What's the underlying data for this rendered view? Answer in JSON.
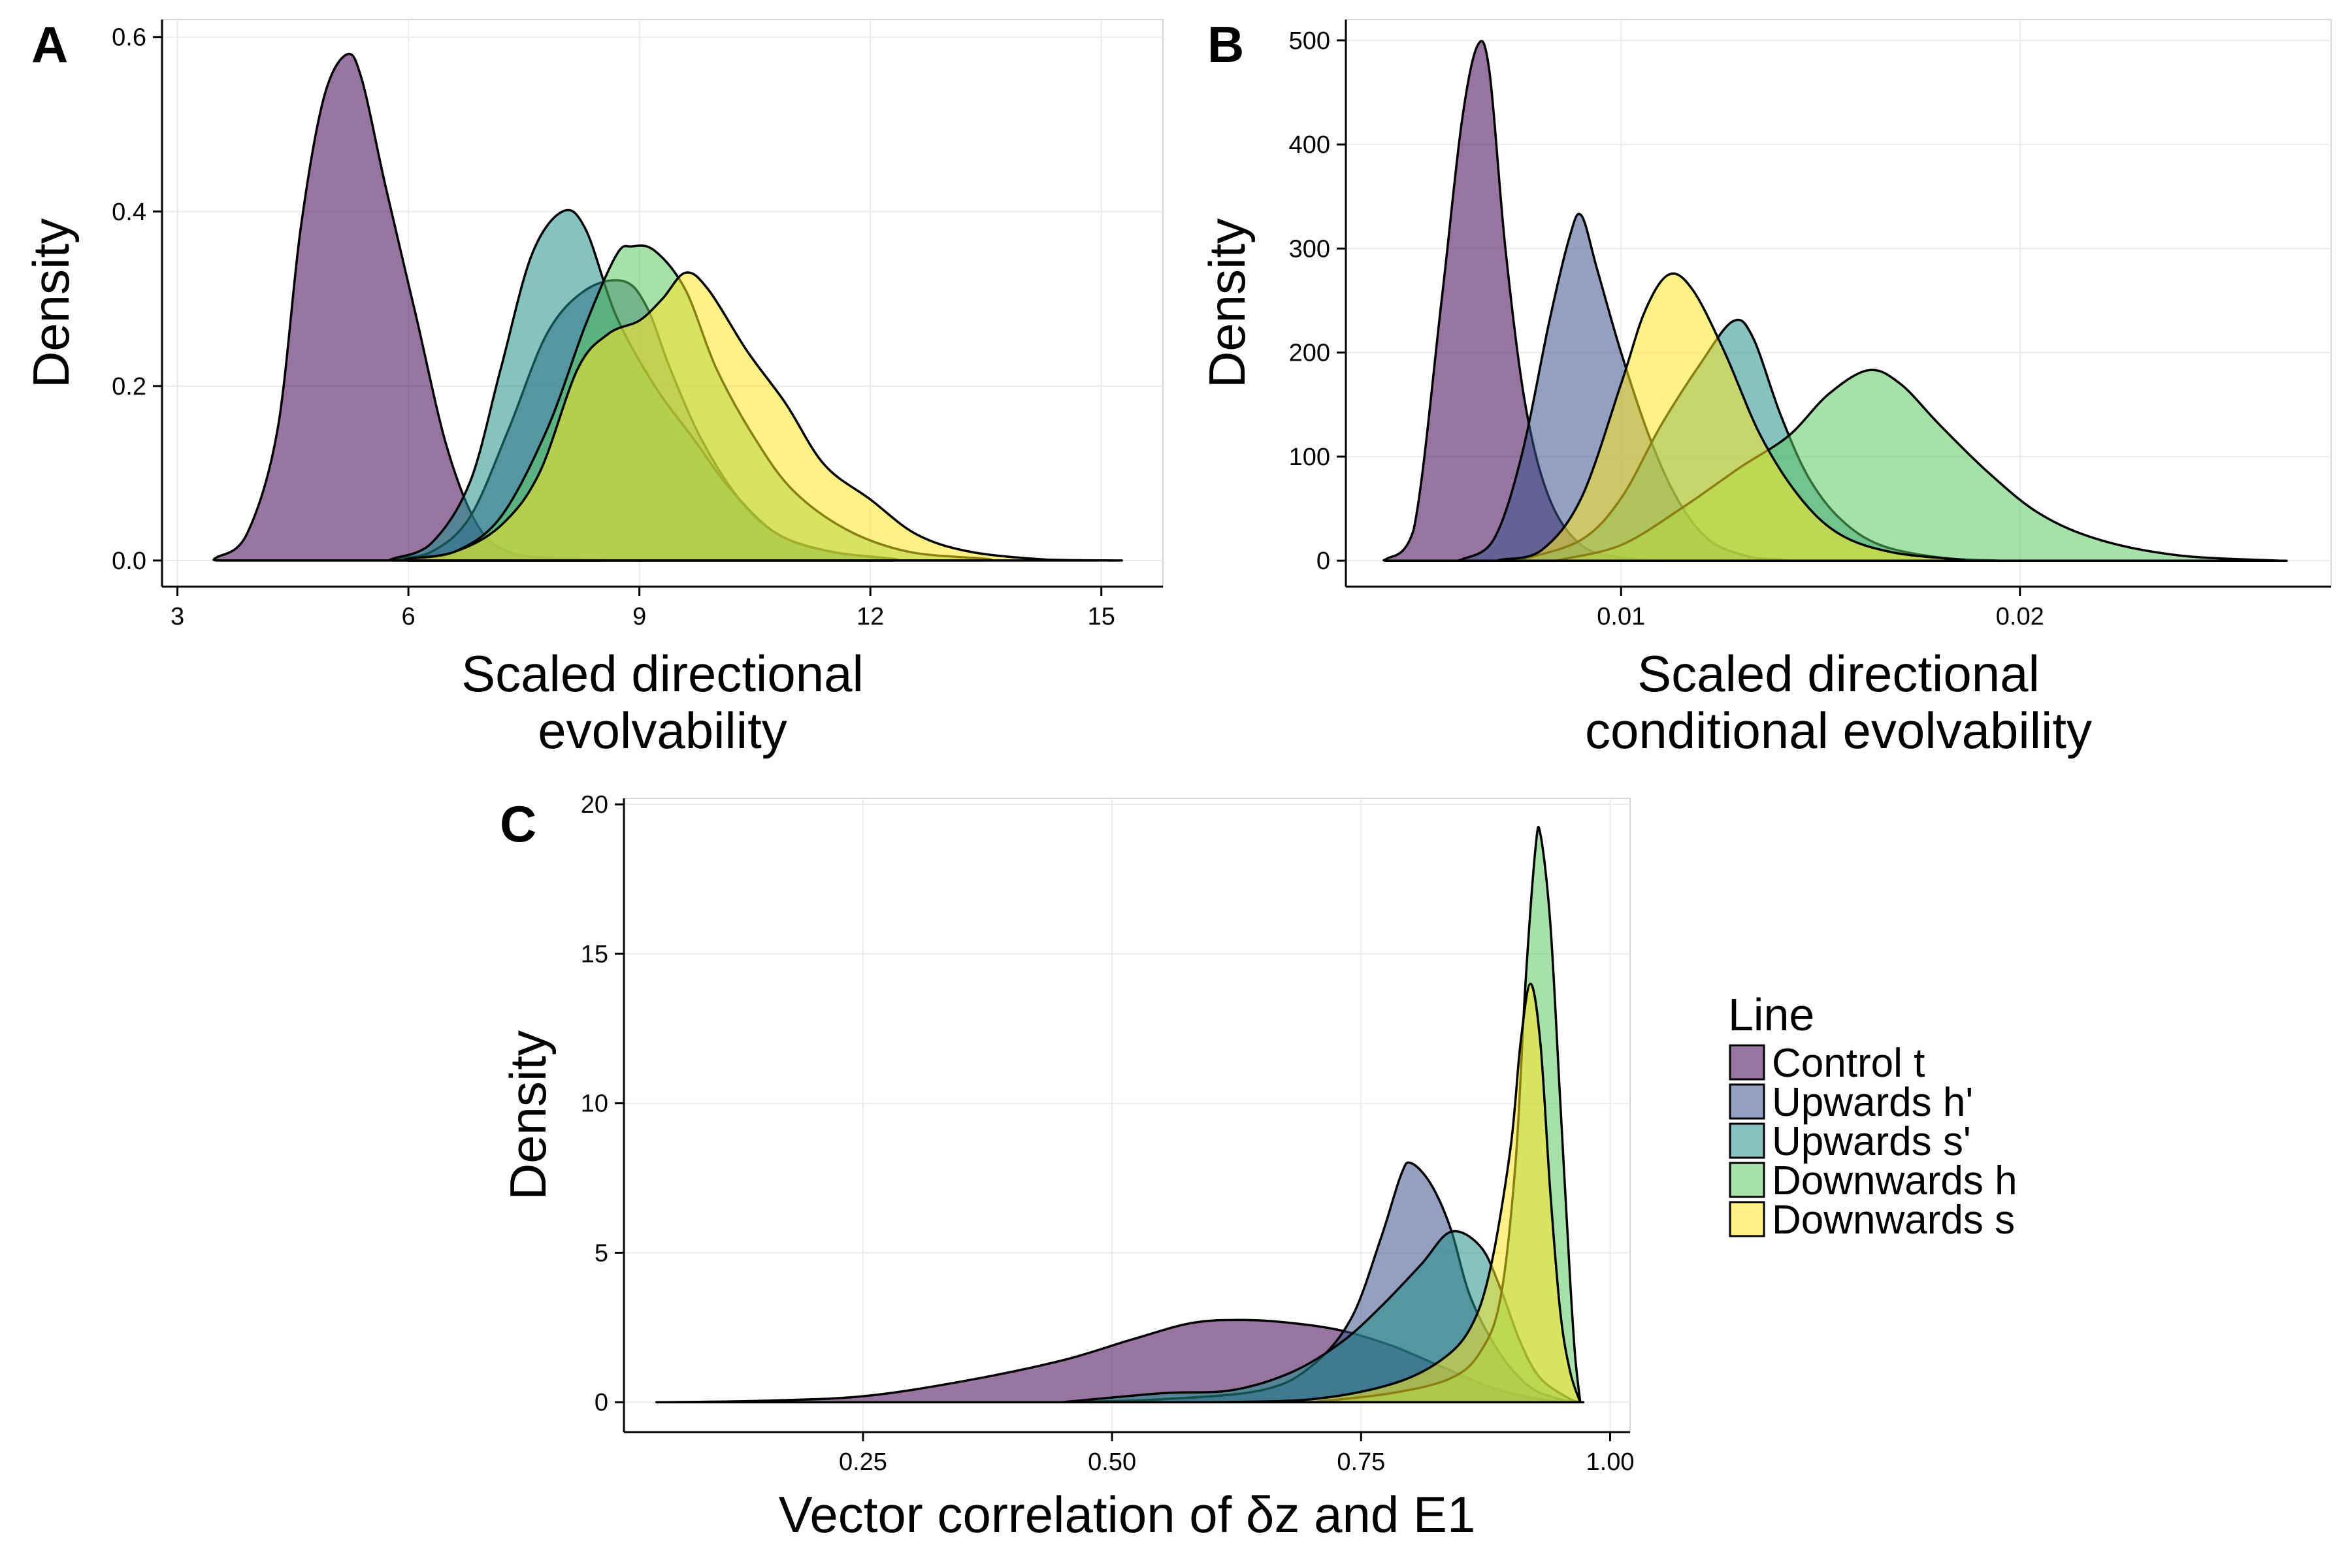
{
  "colors": {
    "Control t": "#440154",
    "Upwards h'": "#3B528B",
    "Upwards s'": "#21908C",
    "Downwards h": "#5DC863",
    "Downwards s": "#FDE725"
  },
  "legend": {
    "title": "Line",
    "placement": "right",
    "entries": [
      "Control t",
      "Upwards h'",
      "Upwards s'",
      "Downwards h",
      "Downwards s"
    ]
  },
  "chart_data": [
    {
      "panel": "A",
      "type": "area",
      "xlabel_lines": [
        "Scaled directional",
        "evolvability"
      ],
      "ylabel": "Density",
      "xlim": [
        2.8,
        15.8
      ],
      "ylim": [
        -0.03,
        0.62
      ],
      "xticks": [
        3,
        6,
        9,
        12,
        15
      ],
      "xtick_labels": [
        "3",
        "6",
        "9",
        "12",
        "15"
      ],
      "yticks": [
        0,
        0.2,
        0.4,
        0.6
      ],
      "ytick_labels": [
        "0.0",
        "0.2",
        "0.4",
        "0.6"
      ],
      "grid": true,
      "series": [
        {
          "name": "Control t",
          "points": [
            [
              3.5,
              0.003
            ],
            [
              3.9,
              0.03
            ],
            [
              4.3,
              0.15
            ],
            [
              4.6,
              0.38
            ],
            [
              4.9,
              0.53
            ],
            [
              5.2,
              0.58
            ],
            [
              5.4,
              0.55
            ],
            [
              5.7,
              0.43
            ],
            [
              6.1,
              0.28
            ],
            [
              6.5,
              0.13
            ],
            [
              6.9,
              0.04
            ],
            [
              7.3,
              0.01
            ],
            [
              7.8,
              0.003
            ],
            [
              8.5,
              0.001
            ]
          ]
        },
        {
          "name": "Upwards h'",
          "points": [
            [
              5.8,
              0.002
            ],
            [
              6.3,
              0.01
            ],
            [
              6.8,
              0.05
            ],
            [
              7.3,
              0.15
            ],
            [
              7.8,
              0.26
            ],
            [
              8.3,
              0.31
            ],
            [
              8.8,
              0.32
            ],
            [
              9.1,
              0.29
            ],
            [
              9.4,
              0.22
            ],
            [
              9.8,
              0.14
            ],
            [
              10.3,
              0.07
            ],
            [
              10.8,
              0.03
            ],
            [
              11.5,
              0.01
            ],
            [
              12.3,
              0.002
            ]
          ]
        },
        {
          "name": "Upwards s'",
          "points": [
            [
              5.8,
              0.002
            ],
            [
              6.3,
              0.02
            ],
            [
              6.8,
              0.09
            ],
            [
              7.2,
              0.22
            ],
            [
              7.6,
              0.35
            ],
            [
              8.0,
              0.4
            ],
            [
              8.3,
              0.38
            ],
            [
              8.7,
              0.28
            ],
            [
              9.2,
              0.2
            ],
            [
              9.7,
              0.14
            ],
            [
              10.2,
              0.08
            ],
            [
              10.8,
              0.03
            ],
            [
              11.5,
              0.01
            ],
            [
              12.3,
              0.002
            ]
          ]
        },
        {
          "name": "Downwards h",
          "points": [
            [
              6.0,
              0.002
            ],
            [
              6.6,
              0.01
            ],
            [
              7.2,
              0.05
            ],
            [
              7.8,
              0.15
            ],
            [
              8.3,
              0.27
            ],
            [
              8.7,
              0.35
            ],
            [
              8.9,
              0.36
            ],
            [
              9.2,
              0.355
            ],
            [
              9.6,
              0.31
            ],
            [
              10.0,
              0.22
            ],
            [
              10.5,
              0.14
            ],
            [
              11.0,
              0.08
            ],
            [
              11.7,
              0.035
            ],
            [
              12.5,
              0.01
            ],
            [
              13.5,
              0.002
            ]
          ]
        },
        {
          "name": "Downwards s",
          "points": [
            [
              6.0,
              0.002
            ],
            [
              6.6,
              0.01
            ],
            [
              7.2,
              0.04
            ],
            [
              7.7,
              0.1
            ],
            [
              8.2,
              0.22
            ],
            [
              8.6,
              0.26
            ],
            [
              9.0,
              0.275
            ],
            [
              9.3,
              0.3
            ],
            [
              9.6,
              0.33
            ],
            [
              9.9,
              0.31
            ],
            [
              10.4,
              0.24
            ],
            [
              10.9,
              0.18
            ],
            [
              11.4,
              0.11
            ],
            [
              12.0,
              0.07
            ],
            [
              12.6,
              0.03
            ],
            [
              13.3,
              0.01
            ],
            [
              14.3,
              0.001
            ],
            [
              15.2,
              0.0
            ]
          ]
        }
      ]
    },
    {
      "panel": "B",
      "type": "area",
      "xlabel_lines": [
        "Scaled directional",
        "conditional evolvability"
      ],
      "ylabel": "Density",
      "xlim": [
        0.0031,
        0.0278
      ],
      "ylim": [
        -25,
        520
      ],
      "xticks": [
        0.01,
        0.02
      ],
      "xtick_labels": [
        "0.01",
        "0.02"
      ],
      "yticks": [
        0,
        100,
        200,
        300,
        400,
        500
      ],
      "ytick_labels": [
        "0",
        "100",
        "200",
        "300",
        "400",
        "500"
      ],
      "grid": true,
      "series": [
        {
          "name": "Control t",
          "points": [
            [
              0.0041,
              1
            ],
            [
              0.0048,
              30
            ],
            [
              0.0055,
              250
            ],
            [
              0.006,
              420
            ],
            [
              0.0064,
              495
            ],
            [
              0.0067,
              470
            ],
            [
              0.0071,
              300
            ],
            [
              0.0076,
              150
            ],
            [
              0.0082,
              60
            ],
            [
              0.009,
              15
            ],
            [
              0.01,
              3
            ],
            [
              0.011,
              0
            ]
          ]
        },
        {
          "name": "Upwards h'",
          "points": [
            [
              0.006,
              1
            ],
            [
              0.0068,
              20
            ],
            [
              0.0075,
              100
            ],
            [
              0.0082,
              230
            ],
            [
              0.0087,
              310
            ],
            [
              0.009,
              332
            ],
            [
              0.0094,
              280
            ],
            [
              0.01,
              200
            ],
            [
              0.0107,
              120
            ],
            [
              0.0114,
              60
            ],
            [
              0.0122,
              20
            ],
            [
              0.0132,
              4
            ],
            [
              0.014,
              1
            ]
          ]
        },
        {
          "name": "Upwards s'",
          "points": [
            [
              0.0075,
              1
            ],
            [
              0.009,
              20
            ],
            [
              0.01,
              60
            ],
            [
              0.011,
              130
            ],
            [
              0.012,
              190
            ],
            [
              0.0128,
              230
            ],
            [
              0.0133,
              215
            ],
            [
              0.014,
              140
            ],
            [
              0.0147,
              80
            ],
            [
              0.0155,
              40
            ],
            [
              0.0165,
              15
            ],
            [
              0.018,
              3
            ],
            [
              0.0195,
              0
            ]
          ]
        },
        {
          "name": "Downwards h",
          "points": [
            [
              0.0085,
              1
            ],
            [
              0.01,
              15
            ],
            [
              0.0115,
              50
            ],
            [
              0.013,
              90
            ],
            [
              0.0142,
              120
            ],
            [
              0.0152,
              160
            ],
            [
              0.0162,
              183
            ],
            [
              0.017,
              170
            ],
            [
              0.018,
              130
            ],
            [
              0.0192,
              85
            ],
            [
              0.0205,
              45
            ],
            [
              0.022,
              20
            ],
            [
              0.024,
              5
            ],
            [
              0.0265,
              0
            ]
          ]
        },
        {
          "name": "Downwards s",
          "points": [
            [
              0.007,
              1
            ],
            [
              0.008,
              10
            ],
            [
              0.009,
              60
            ],
            [
              0.01,
              170
            ],
            [
              0.0106,
              240
            ],
            [
              0.0112,
              275
            ],
            [
              0.0118,
              260
            ],
            [
              0.0126,
              200
            ],
            [
              0.0135,
              120
            ],
            [
              0.0145,
              60
            ],
            [
              0.0155,
              25
            ],
            [
              0.0168,
              8
            ],
            [
              0.0185,
              1
            ]
          ]
        }
      ]
    },
    {
      "panel": "C",
      "type": "area",
      "xlabel": "Vector correlation of δz and E1",
      "ylabel": "Density",
      "xlim": [
        0.01,
        1.02
      ],
      "ylim": [
        -1,
        20.2
      ],
      "xticks": [
        0.25,
        0.5,
        0.75,
        1.0
      ],
      "xtick_labels": [
        "0.25",
        "0.50",
        "0.75",
        "1.00"
      ],
      "yticks": [
        0,
        5,
        10,
        15,
        20
      ],
      "ytick_labels": [
        "0",
        "5",
        "10",
        "15",
        "20"
      ],
      "grid": true,
      "series": [
        {
          "name": "Control t",
          "points": [
            [
              0.05,
              0
            ],
            [
              0.15,
              0.05
            ],
            [
              0.25,
              0.2
            ],
            [
              0.35,
              0.7
            ],
            [
              0.45,
              1.4
            ],
            [
              0.52,
              2.1
            ],
            [
              0.58,
              2.65
            ],
            [
              0.63,
              2.75
            ],
            [
              0.68,
              2.65
            ],
            [
              0.73,
              2.4
            ],
            [
              0.78,
              1.9
            ],
            [
              0.83,
              1.2
            ],
            [
              0.88,
              0.5
            ],
            [
              0.93,
              0.1
            ],
            [
              0.97,
              0
            ]
          ]
        },
        {
          "name": "Upwards h'",
          "points": [
            [
              0.45,
              0
            ],
            [
              0.55,
              0.1
            ],
            [
              0.65,
              0.4
            ],
            [
              0.7,
              1.2
            ],
            [
              0.74,
              2.8
            ],
            [
              0.77,
              5.5
            ],
            [
              0.79,
              7.6
            ],
            [
              0.8,
              8.0
            ],
            [
              0.82,
              7.3
            ],
            [
              0.84,
              5.8
            ],
            [
              0.86,
              3.5
            ],
            [
              0.89,
              1.6
            ],
            [
              0.92,
              0.5
            ],
            [
              0.95,
              0.1
            ],
            [
              0.97,
              0
            ]
          ]
        },
        {
          "name": "Upwards s'",
          "points": [
            [
              0.45,
              0
            ],
            [
              0.55,
              0.3
            ],
            [
              0.62,
              0.4
            ],
            [
              0.68,
              1.0
            ],
            [
              0.73,
              2.0
            ],
            [
              0.77,
              3.2
            ],
            [
              0.81,
              4.6
            ],
            [
              0.84,
              5.7
            ],
            [
              0.87,
              5.2
            ],
            [
              0.89,
              3.8
            ],
            [
              0.91,
              2.0
            ],
            [
              0.93,
              0.8
            ],
            [
              0.96,
              0.1
            ],
            [
              0.97,
              0
            ]
          ]
        },
        {
          "name": "Downwards h",
          "points": [
            [
              0.7,
              0
            ],
            [
              0.78,
              0.3
            ],
            [
              0.84,
              0.8
            ],
            [
              0.87,
              1.7
            ],
            [
              0.89,
              3.5
            ],
            [
              0.905,
              8.0
            ],
            [
              0.915,
              14.0
            ],
            [
              0.925,
              18.5
            ],
            [
              0.93,
              19.0
            ],
            [
              0.94,
              16.0
            ],
            [
              0.95,
              10.0
            ],
            [
              0.96,
              4.0
            ],
            [
              0.965,
              1.5
            ],
            [
              0.97,
              0
            ]
          ]
        },
        {
          "name": "Downwards s",
          "points": [
            [
              0.6,
              0
            ],
            [
              0.7,
              0.1
            ],
            [
              0.78,
              0.6
            ],
            [
              0.83,
              1.4
            ],
            [
              0.86,
              2.5
            ],
            [
              0.88,
              4.5
            ],
            [
              0.9,
              8.5
            ],
            [
              0.91,
              12.0
            ],
            [
              0.92,
              14.0
            ],
            [
              0.93,
              12.0
            ],
            [
              0.94,
              7.0
            ],
            [
              0.95,
              3.0
            ],
            [
              0.96,
              1.0
            ],
            [
              0.97,
              0
            ]
          ]
        }
      ]
    }
  ]
}
